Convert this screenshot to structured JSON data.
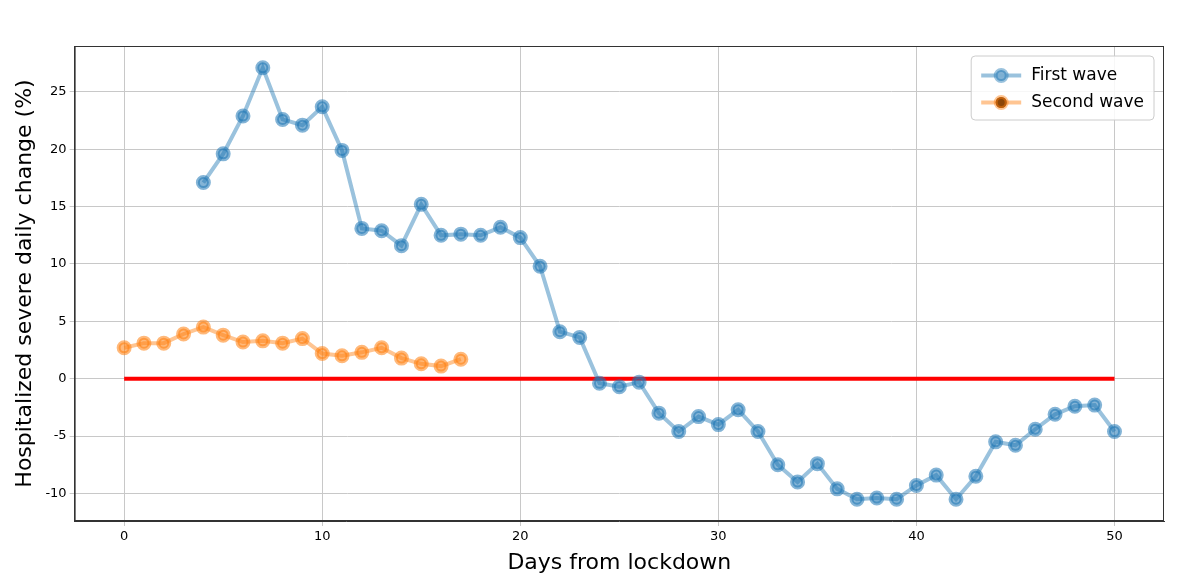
{
  "chart_data": {
    "type": "line",
    "x_label": "Days from lockdown",
    "y_label": "Hospitalized severe daily change (%)",
    "xlim": [
      -2.5,
      52.5
    ],
    "xticks": [
      0,
      10,
      20,
      30,
      40,
      50
    ],
    "ylim": [
      -12.4,
      29
    ],
    "yticks": [
      -10,
      -5,
      0,
      5,
      10,
      15,
      20,
      25
    ],
    "grid": true,
    "legend": "upper right",
    "series": [
      {
        "name": "First wave",
        "color": "#1f77b4",
        "marker": "o",
        "line_style": "solid",
        "x": [
          4,
          5,
          6,
          7,
          8,
          9,
          10,
          11,
          12,
          13,
          14,
          15,
          16,
          17,
          18,
          19,
          20,
          21,
          22,
          23,
          24,
          25,
          26,
          27,
          28,
          29,
          30,
          31,
          32,
          33,
          34,
          35,
          36,
          37,
          38,
          39,
          40,
          41,
          42,
          43,
          44,
          45,
          46,
          47,
          48,
          49,
          50
        ],
        "values": [
          17.1,
          19.6,
          22.9,
          27.1,
          22.6,
          22.1,
          23.7,
          19.9,
          13.1,
          12.9,
          11.6,
          15.2,
          12.5,
          12.6,
          12.5,
          13.2,
          12.3,
          9.8,
          4.1,
          3.6,
          -0.4,
          -0.7,
          -0.3,
          -3.0,
          -4.6,
          -3.3,
          -4.0,
          -2.7,
          -4.6,
          -7.5,
          -9.0,
          -7.4,
          -9.6,
          -10.5,
          -10.4,
          -10.5,
          -9.3,
          -8.4,
          -10.5,
          -8.5,
          -5.5,
          -5.8,
          -4.4,
          -3.1,
          -2.4,
          -2.3,
          -4.6
        ]
      },
      {
        "name": "Second wave",
        "color": "#ff7f0e",
        "marker": "o",
        "line_style": "solid",
        "x": [
          0,
          1,
          2,
          3,
          4,
          5,
          6,
          7,
          8,
          9,
          10,
          11,
          12,
          13,
          14,
          15,
          16,
          17
        ],
        "values": [
          2.7,
          3.1,
          3.1,
          3.9,
          4.5,
          3.8,
          3.2,
          3.3,
          3.1,
          3.5,
          2.2,
          2.0,
          2.3,
          2.7,
          1.8,
          1.3,
          1.1,
          1.7
        ]
      }
    ],
    "hline": {
      "y": 0,
      "xmin": 0,
      "xmax": 50,
      "color": "#ff0000"
    }
  }
}
